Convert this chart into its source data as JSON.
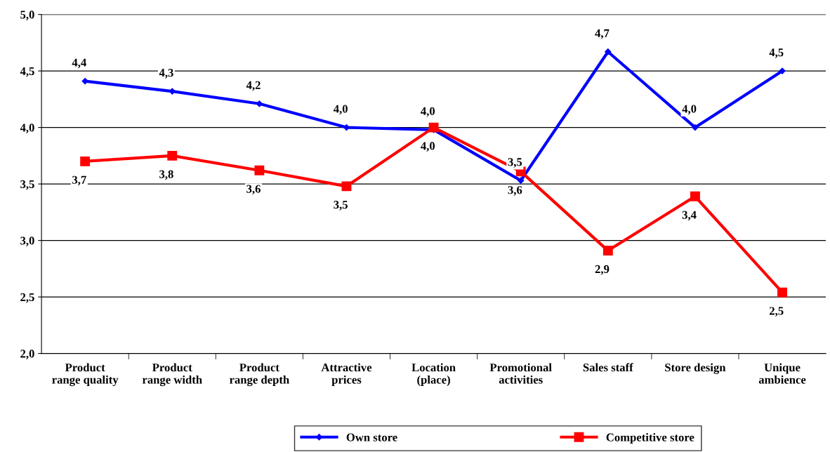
{
  "chart_data": {
    "type": "line",
    "categories": [
      "Product\nrange quality",
      "Product\nrange width",
      "Product\nrange depth",
      "Attractive\nprices",
      "Location\n(place)",
      "Promotional\nactivities",
      "Sales staff",
      "Store design",
      "Unique\nambience"
    ],
    "series": [
      {
        "name": "Own store",
        "color": "#0000ff",
        "marker": "diamond",
        "values": [
          4.41,
          4.32,
          4.21,
          4.0,
          3.98,
          3.53,
          4.67,
          4.0,
          4.5
        ],
        "value_labels": [
          "4,4",
          "4,3",
          "4,2",
          "4,0",
          "4,0",
          "3,5",
          "4,7",
          "4,0",
          "4,5"
        ]
      },
      {
        "name": "Competitive store",
        "color": "#ff0000",
        "marker": "square",
        "values": [
          3.7,
          3.75,
          3.62,
          3.48,
          4.0,
          3.61,
          2.91,
          3.39,
          2.54
        ],
        "value_labels": [
          "3,7",
          "3,8",
          "3,6",
          "3,5",
          "4,0",
          "3,6",
          "2,9",
          "3,4",
          "2,5"
        ]
      }
    ],
    "ylim": [
      2.0,
      5.0
    ],
    "yticks": [
      {
        "value": 2.0,
        "label": "2,0"
      },
      {
        "value": 2.5,
        "label": "2,5"
      },
      {
        "value": 3.0,
        "label": "3,0"
      },
      {
        "value": 3.5,
        "label": "3,5"
      },
      {
        "value": 4.0,
        "label": "4,0"
      },
      {
        "value": 4.5,
        "label": "4,5"
      },
      {
        "value": 5.0,
        "label": "5,0"
      }
    ],
    "grid": "y",
    "legend": "bottom"
  }
}
